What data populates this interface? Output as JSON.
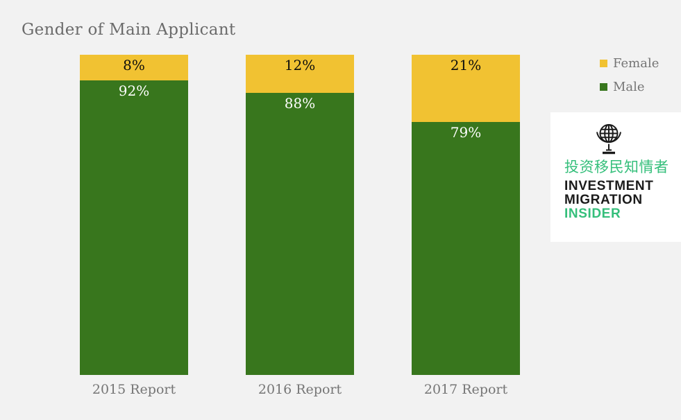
{
  "page": {
    "background": "#f2f2f2"
  },
  "chart_data": {
    "type": "bar",
    "subtype": "stacked-100-percent",
    "title": "Gender of Main Applicant",
    "categories": [
      "2015 Report",
      "2016 Report",
      "2017 Report"
    ],
    "series": [
      {
        "name": "Female",
        "color": "#f1c232",
        "values": [
          8,
          12,
          21
        ],
        "labels": [
          "8%",
          "12%",
          "21%"
        ]
      },
      {
        "name": "Male",
        "color": "#38761d",
        "values": [
          92,
          88,
          79
        ],
        "labels": [
          "92%",
          "88%",
          "79%"
        ]
      }
    ],
    "value_format": "percent",
    "ylim": [
      0,
      100
    ],
    "grid": false,
    "axis_lines": false,
    "legend_position": "top-right",
    "label_placement": "inside-top"
  },
  "legend": {
    "items": [
      {
        "label": "Female",
        "color": "#f1c232"
      },
      {
        "label": "Male",
        "color": "#38761d"
      }
    ]
  },
  "logo": {
    "chinese": "投资移民知情者",
    "line1": "INVESTMENT",
    "line2": "MIGRATION",
    "line3": "INSIDER",
    "green": "#35bf7b",
    "black": "#1b1b1b",
    "globe_icon": "desk-globe-icon"
  },
  "colors": {
    "title_text": "#6b6b6b",
    "axis_text": "#757575",
    "label_on_yellow": "#0d0d0d",
    "label_on_green": "#ffffff",
    "card_background": "#ffffff"
  }
}
